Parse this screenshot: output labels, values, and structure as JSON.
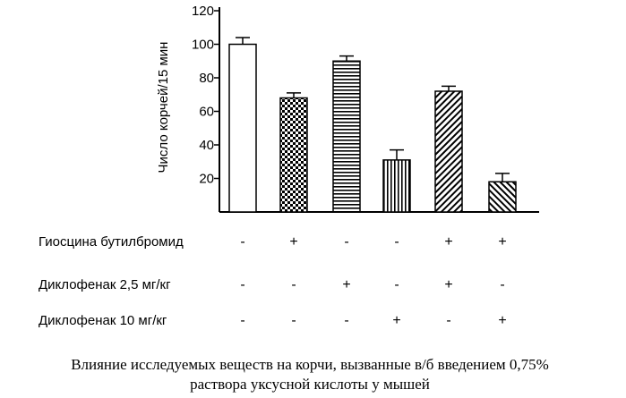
{
  "chart_data": {
    "type": "bar",
    "ylabel": "Число корчей/15 мин",
    "yticks": [
      20,
      40,
      60,
      80,
      100,
      120
    ],
    "ylim": [
      0,
      120
    ],
    "grid": false,
    "bars": [
      {
        "value": 100,
        "error": 4,
        "pattern": "white"
      },
      {
        "value": 68,
        "error": 3,
        "pattern": "checker"
      },
      {
        "value": 90,
        "error": 3,
        "pattern": "hlines"
      },
      {
        "value": 31,
        "error": 6,
        "pattern": "vlines"
      },
      {
        "value": 72,
        "error": 3,
        "pattern": "diag-right"
      },
      {
        "value": 18,
        "error": 5,
        "pattern": "diag-left"
      }
    ],
    "treatments": [
      {
        "label": "Гиосцина бутилбромид",
        "marks": [
          "-",
          "+",
          "-",
          "-",
          "+",
          "+"
        ]
      },
      {
        "label": "Диклофенак 2,5 мг/кг",
        "marks": [
          "-",
          "-",
          "+",
          "-",
          "+",
          "-"
        ]
      },
      {
        "label": "Диклофенак 10 мг/кг",
        "marks": [
          "-",
          "-",
          "-",
          "+",
          "-",
          "+"
        ]
      }
    ],
    "caption": [
      "Влияние исследуемых веществ на корчи, вызванные в/б введением 0,75%",
      "раствора уксусной кислоты у мышей"
    ]
  }
}
